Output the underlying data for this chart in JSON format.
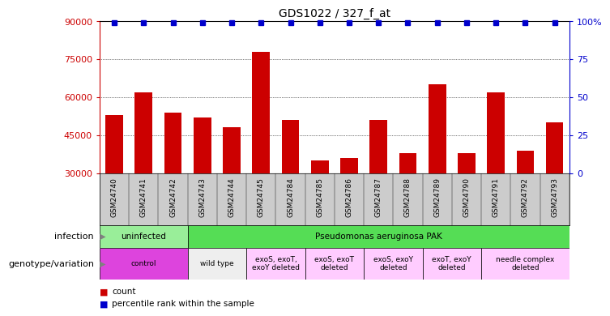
{
  "title": "GDS1022 / 327_f_at",
  "samples": [
    "GSM24740",
    "GSM24741",
    "GSM24742",
    "GSM24743",
    "GSM24744",
    "GSM24745",
    "GSM24784",
    "GSM24785",
    "GSM24786",
    "GSM24787",
    "GSM24788",
    "GSM24789",
    "GSM24790",
    "GSM24791",
    "GSM24792",
    "GSM24793"
  ],
  "counts": [
    53000,
    62000,
    54000,
    52000,
    48000,
    78000,
    51000,
    35000,
    36000,
    51000,
    38000,
    65000,
    38000,
    62000,
    39000,
    50000
  ],
  "percentile_ranks": [
    99,
    99,
    99,
    99,
    99,
    99,
    99,
    99,
    99,
    99,
    99,
    99,
    99,
    99,
    99,
    99
  ],
  "ylim_left": [
    30000,
    90000
  ],
  "ylim_right": [
    0,
    100
  ],
  "yticks_left": [
    30000,
    45000,
    60000,
    75000,
    90000
  ],
  "ytick_labels_left": [
    "30000",
    "45000",
    "60000",
    "75000",
    "90000"
  ],
  "yticks_right": [
    0,
    25,
    50,
    75,
    100
  ],
  "ytick_labels_right": [
    "0",
    "25",
    "50",
    "75",
    "100%"
  ],
  "bar_color": "#cc0000",
  "percentile_color": "#0000cc",
  "bar_width": 0.6,
  "infection_row": {
    "label": "infection",
    "groups": [
      {
        "label": "uninfected",
        "span": [
          0,
          3
        ],
        "color": "#99ee99"
      },
      {
        "label": "Pseudomonas aeruginosa PAK",
        "span": [
          3,
          16
        ],
        "color": "#55dd55"
      }
    ]
  },
  "genotype_row": {
    "label": "genotype/variation",
    "groups": [
      {
        "label": "control",
        "span": [
          0,
          3
        ],
        "color": "#dd44dd"
      },
      {
        "label": "wild type",
        "span": [
          3,
          5
        ],
        "color": "#eeeeee"
      },
      {
        "label": "exoS, exoT,\nexoY deleted",
        "span": [
          5,
          7
        ],
        "color": "#ffccff"
      },
      {
        "label": "exoS, exoT\ndeleted",
        "span": [
          7,
          9
        ],
        "color": "#ffccff"
      },
      {
        "label": "exoS, exoY\ndeleted",
        "span": [
          9,
          11
        ],
        "color": "#ffccff"
      },
      {
        "label": "exoT, exoY\ndeleted",
        "span": [
          11,
          13
        ],
        "color": "#ffccff"
      },
      {
        "label": "needle complex\ndeleted",
        "span": [
          13,
          16
        ],
        "color": "#ffccff"
      }
    ]
  },
  "legend_items": [
    {
      "label": "count",
      "color": "#cc0000"
    },
    {
      "label": "percentile rank within the sample",
      "color": "#0000cc"
    }
  ],
  "background_color": "#ffffff",
  "tick_bg_color": "#cccccc",
  "grid_color": "#000000"
}
